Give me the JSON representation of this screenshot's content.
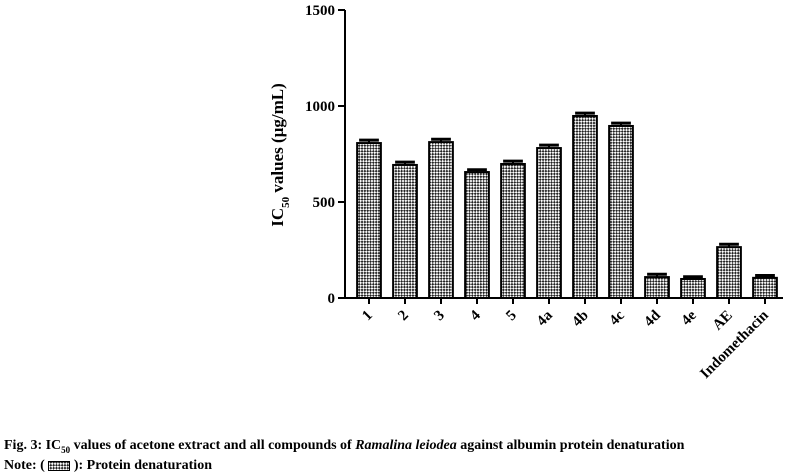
{
  "chart_data": {
    "type": "bar",
    "ylabel": {
      "text": "IC",
      "sub": "50",
      "rest": " values (µg/mL)"
    },
    "categories": [
      "1",
      "2",
      "3",
      "4",
      "5",
      "4a",
      "4b",
      "4c",
      "4d",
      "4e",
      "AE",
      "Indomethacin"
    ],
    "values": [
      807,
      693,
      812,
      656,
      698,
      781,
      948,
      896,
      109,
      99,
      265,
      105
    ],
    "errors": [
      15,
      15,
      15,
      12,
      15,
      15,
      15,
      15,
      15,
      12,
      15,
      12
    ],
    "ylim": [
      0,
      1500
    ],
    "yticks": [
      0,
      500,
      1000,
      1500
    ],
    "color": "#000000"
  },
  "caption": {
    "prefix": "Fig. 3: IC",
    "sub": "50",
    "middle": " values of acetone extract and all compounds of ",
    "italic": "Ramalina leiodea",
    "suffix": " against albumin protein denaturation"
  },
  "note": {
    "before": "Note: (",
    "after": "): Protein denaturation"
  }
}
